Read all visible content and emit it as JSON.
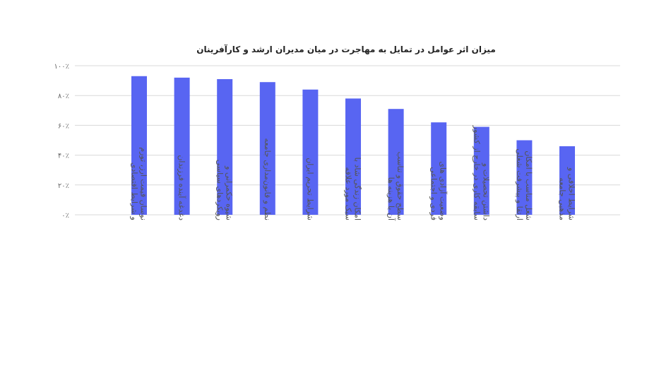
{
  "chart_data": {
    "type": "bar",
    "title": "میزان اثر عوامل در تمایل به مهاجرت در میان مدیران ارشد و کارآفرینان",
    "xlabel": "",
    "ylabel": "",
    "ylim": [
      0,
      100
    ],
    "y_ticks": [
      0,
      20,
      40,
      60,
      80,
      100
    ],
    "y_tick_labels": [
      "۰٪",
      "۲۰٪",
      "۴۰٪",
      "۶۰٪",
      "۸۰٪",
      "۱۰۰٪"
    ],
    "grid": true,
    "legend": "none",
    "bar_color": "#5865f2",
    "categories": [
      [
        "نوسان قیمت ارز، تورم",
        "و شرایط اقتصادی"
      ],
      [
        "دغدغه آینده فرزندان"
      ],
      [
        "شیوه حکمرانی و",
        "رویکردهای سیاسی"
      ],
      [
        "نظم و قانون‌مداری جامعه"
      ],
      [
        "شرایط تحریم ایران"
      ],
      [
        "امکان زندگی شاد با",
        "سبک مورد علاقه"
      ],
      [
        "سطح حقوق و تناسب",
        "آن با هزینه ها"
      ],
      [
        "وضعیت آزادی های",
        "فردی و اجتماعی"
      ],
      [
        "داشتن تحصیلات و",
        "سابقه کاری در خارج از کشور"
      ],
      [
        "شغل مناسب با امکان",
        "ارتقا و پیشرفت شغلی"
      ],
      [
        "شرایط اخلاقی و",
        "مذهبی جامعه"
      ]
    ],
    "values": [
      93,
      92,
      91,
      89,
      84,
      78,
      71,
      62,
      59,
      50,
      46
    ]
  }
}
